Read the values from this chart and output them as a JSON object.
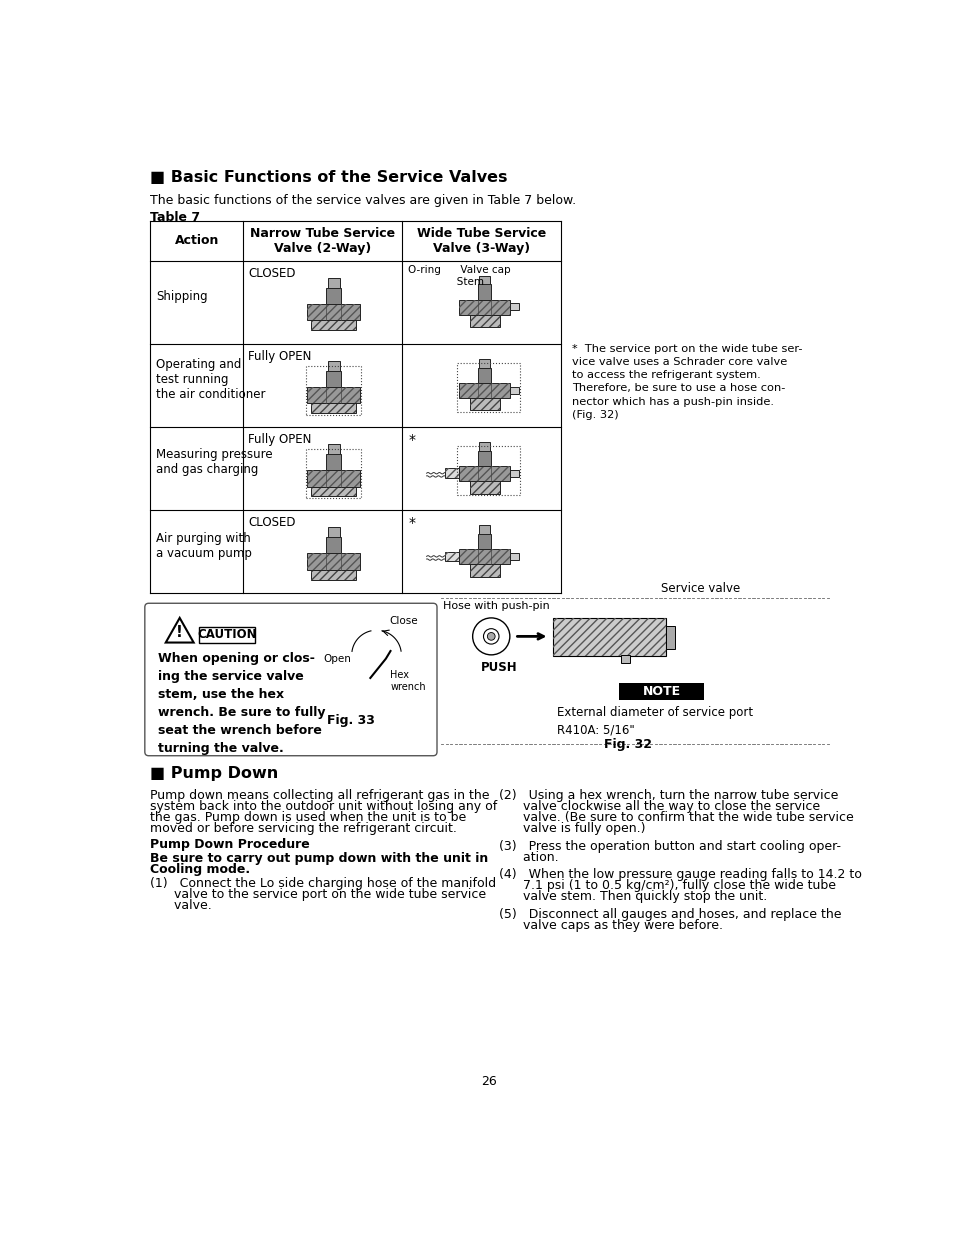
{
  "title": "■ Basic Functions of the Service Valves",
  "intro_text": "The basic functions of the service valves are given in Table 7 below.",
  "table_label": "Table 7",
  "col_headers": [
    "Action",
    "Narrow Tube Service\nValve (2-Way)",
    "Wide Tube Service\nValve (3-Way)"
  ],
  "footnote_star": "*",
  "footnote_text": "  The service port on the wide tube ser-\nvice valve uses a Schrader core valve\nto access the refrigerant system.\nTherefore, be sure to use a hose con-\nnector which has a push-pin inside.\n(Fig. 32)",
  "caution_title": "CAUTION",
  "caution_bold_text": "When opening or clos-\ning the service valve\nstem, use the hex\nwrench. Be sure to fully\nseat the wrench before\nturning the valve.",
  "caution_fig_label": "Fig. 33",
  "close_label": "Close",
  "open_label": "Open",
  "hex_wrench_label": "Hex\nwrench",
  "fig32_service_valve_label": "Service valve",
  "fig32_hose_label": "Hose with push-pin",
  "fig32_push_label": "PUSH",
  "fig32_note_title": "NOTE",
  "fig32_note_text": "External diameter of service port\nR410A: 5/16\"",
  "fig32_label": "Fig. 32",
  "pump_down_title": "■ Pump Down",
  "pump_down_intro_lines": [
    "Pump down means collecting all refrigerant gas in the",
    "system back into the outdoor unit without losing any of",
    "the gas. Pump down is used when the unit is to be",
    "moved or before servicing the refrigerant circuit."
  ],
  "pump_down_procedure": "Pump Down Procedure",
  "pump_down_bold_line1": "Be sure to carry out pump down with the unit in",
  "pump_down_bold_line2": "Cooling mode.",
  "step1_lines": [
    "(1)   Connect the Lo side charging hose of the manifold",
    "      valve to the service port on the wide tube service",
    "      valve."
  ],
  "step2_lines": [
    "(2)   Using a hex wrench, turn the narrow tube service",
    "      valve clockwise all the way to close the service",
    "      valve. (Be sure to confirm that the wide tube service",
    "      valve is fully open.)"
  ],
  "step3_lines": [
    "(3)   Press the operation button and start cooling oper-",
    "      ation."
  ],
  "step4_lines": [
    "(4)   When the low pressure gauge reading falls to 14.2 to",
    "      7.1 psi (1 to 0.5 kg/cm²), fully close the wide tube",
    "      valve stem. Then quickly stop the unit."
  ],
  "step5_lines": [
    "(5)   Disconnect all gauges and hoses, and replace the",
    "      valve caps as they were before."
  ],
  "page_number": "26",
  "bg_color": "#ffffff",
  "text_color": "#000000",
  "table_line_color": "#000000"
}
